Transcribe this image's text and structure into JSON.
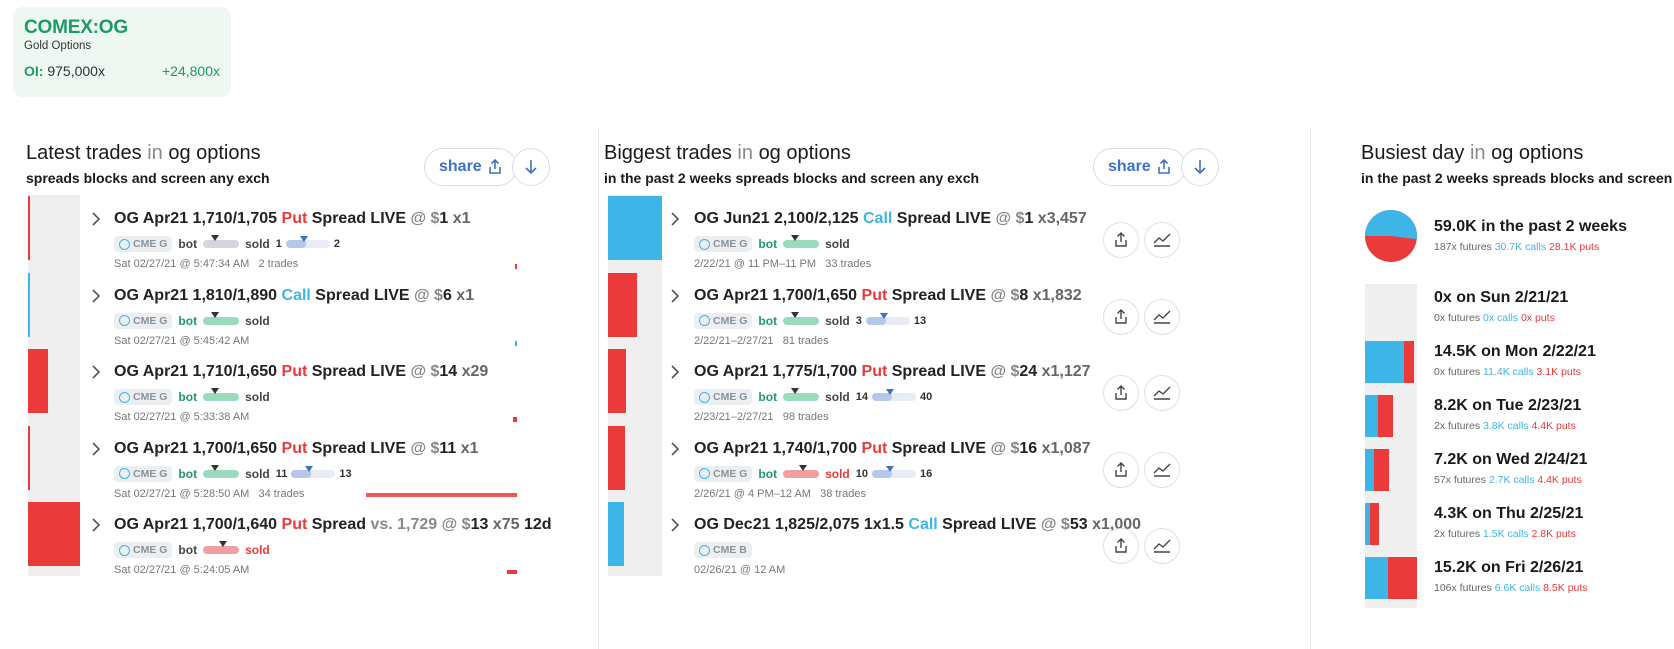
{
  "ticker": {
    "symbol": "COMEX:OG",
    "name": "Gold Options",
    "oi_label": "OI:",
    "oi_value": "975,000x",
    "oi_change": "+24,800x"
  },
  "colors": {
    "put": "#ea3a3a",
    "call": "#3db5e6",
    "accent": "#1d9a6c",
    "link": "#3f72c6"
  },
  "latest": {
    "title_main": "Latest trades",
    "title_in": "in",
    "title_subject": "og options",
    "subtitle": "spreads blocks and screen any exch",
    "share_label": "share",
    "trades": [
      {
        "title_pre": "OG Apr21 1,710/1,705 ",
        "type": "Put",
        "title_mid": " Spread LIVE ",
        "at": "@ $",
        "price": "1",
        "qty": " x1",
        "exch": "CME G",
        "bot": "bot",
        "sold": "sold",
        "range_lo": "1",
        "range_hi": "2",
        "time": "Sat 02/27/21 @ 5:47:34 AM",
        "count": "2 trades",
        "bar": 0.02,
        "side": "put"
      },
      {
        "title_pre": "OG Apr21 1,810/1,890 ",
        "type": "Call",
        "title_mid": " Spread LIVE ",
        "at": "@ $",
        "price": "6",
        "qty": " x1",
        "exch": "CME G",
        "bot": "bot",
        "sold": "sold",
        "range_lo": "",
        "range_hi": "",
        "time": "Sat 02/27/21 @ 5:45:42 AM",
        "count": "",
        "bar": 0.02,
        "side": "call"
      },
      {
        "title_pre": "OG Apr21 1,710/1,650 ",
        "type": "Put",
        "title_mid": " Spread LIVE ",
        "at": "@ $",
        "price": "14",
        "qty": " x29",
        "exch": "CME G",
        "bot": "bot",
        "sold": "sold",
        "range_lo": "",
        "range_hi": "",
        "time": "Sat 02/27/21 @ 5:33:38 AM",
        "count": "",
        "bar": 0.38,
        "side": "put"
      },
      {
        "title_pre": "OG Apr21 1,700/1,650 ",
        "type": "Put",
        "title_mid": " Spread LIVE ",
        "at": "@ $",
        "price": "11",
        "qty": " x1",
        "exch": "CME G",
        "bot": "bot",
        "sold": "sold",
        "range_lo": "11",
        "range_hi": "13",
        "time": "Sat 02/27/21 @ 5:28:50 AM",
        "count": "34 trades",
        "bar": 0.02,
        "side": "put"
      },
      {
        "title_pre": "OG Apr21 1,700/1,640 ",
        "type": "Put",
        "title_mid": " Spread ",
        "vs": "vs. 1,729 ",
        "at": "@ $",
        "price": "13",
        "qty": " x75",
        "extra": " 12d",
        "exch": "CME G",
        "bot": "bot",
        "sold": "sold",
        "range_lo": "",
        "range_hi": "",
        "time": "Sat 02/27/21 @ 5:24:05 AM",
        "count": "",
        "bar": 1.0,
        "side": "put"
      }
    ]
  },
  "biggest": {
    "title_main": "Biggest trades",
    "title_in": "in",
    "title_subject": "og options",
    "subtitle": "in the past 2 weeks  spreads blocks and screen any exch",
    "share_label": "share",
    "trades": [
      {
        "title_pre": "OG Jun21 2,100/2,125 ",
        "type": "Call",
        "title_mid": " Spread LIVE ",
        "at": "@ $",
        "price": "1",
        "qty": " x3,457",
        "exch": "CME G",
        "bot": "bot",
        "sold": "sold",
        "range_lo": "",
        "range_hi": "",
        "time": "2/22/21 @ 11 PM–11 PM",
        "count": "33 trades",
        "bar": 1.0,
        "side": "call"
      },
      {
        "title_pre": "OG Apr21 1,700/1,650 ",
        "type": "Put",
        "title_mid": " Spread LIVE ",
        "at": "@ $",
        "price": "8",
        "qty": " x1,832",
        "exch": "CME G",
        "bot": "bot",
        "sold": "sold",
        "range_lo": "3",
        "range_hi": "13",
        "time": "2/22/21–2/27/21",
        "count": "81 trades",
        "bar": 0.53,
        "side": "put"
      },
      {
        "title_pre": "OG Apr21 1,775/1,700 ",
        "type": "Put",
        "title_mid": " Spread LIVE ",
        "at": "@ $",
        "price": "24",
        "qty": " x1,127",
        "exch": "CME G",
        "bot": "bot",
        "sold": "sold",
        "range_lo": "14",
        "range_hi": "40",
        "time": "2/23/21–2/27/21",
        "count": "98 trades",
        "bar": 0.33,
        "side": "put"
      },
      {
        "title_pre": "OG Apr21 1,740/1,700 ",
        "type": "Put",
        "title_mid": " Spread LIVE ",
        "at": "@ $",
        "price": "16",
        "qty": " x1,087",
        "exch": "CME G",
        "bot": "bot",
        "sold": "sold",
        "range_lo": "10",
        "range_hi": "16",
        "time": "2/26/21 @ 4 PM–12 AM",
        "count": "38 trades",
        "bar": 0.31,
        "side": "put"
      },
      {
        "title_pre": "OG Dec21 1,825/2,075 1x1.5 ",
        "type": "Call",
        "title_mid": " Spread LIVE ",
        "at": "@ $",
        "price": "53",
        "qty": " x1,000",
        "exch": "CME B",
        "bot": "",
        "sold": "",
        "range_lo": "",
        "range_hi": "",
        "time": "02/26/21 @ 12 AM",
        "count": "",
        "bar": 0.29,
        "side": "call"
      }
    ]
  },
  "busiest": {
    "title_main": "Busiest day",
    "title_in": "in",
    "title_subject": "og options",
    "subtitle": "in the past 2 weeks  spreads blocks and screen",
    "summary": {
      "title": "59.0K in the past 2 weeks",
      "futures": "187x futures",
      "calls": "30.7K calls",
      "puts": "28.1K puts",
      "call_fraction": 0.52
    },
    "days": [
      {
        "title": "0x on Sun 2/21/21",
        "futures": "0x futures",
        "calls": "0x calls",
        "puts": "0x puts",
        "call_frac": 0.0,
        "put_frac": 0.0
      },
      {
        "title": "14.5K on Mon 2/22/21",
        "futures": "0x futures",
        "calls": "11.4K calls",
        "puts": "3.1K puts",
        "call_frac": 0.75,
        "put_frac": 0.2
      },
      {
        "title": "8.2K on Tue 2/23/21",
        "futures": "2x futures",
        "calls": "3.8K calls",
        "puts": "4.4K puts",
        "call_frac": 0.25,
        "put_frac": 0.29
      },
      {
        "title": "7.2K on Wed 2/24/21",
        "futures": "57x futures",
        "calls": "2.7K calls",
        "puts": "4.4K puts",
        "call_frac": 0.18,
        "put_frac": 0.29
      },
      {
        "title": "4.3K on Thu 2/25/21",
        "futures": "2x futures",
        "calls": "1.5K calls",
        "puts": "2.8K puts",
        "call_frac": 0.1,
        "put_frac": 0.18
      },
      {
        "title": "15.2K on Fri 2/26/21",
        "futures": "106x futures",
        "calls": "6.6K calls",
        "puts": "8.5K puts",
        "call_frac": 0.44,
        "put_frac": 0.56
      }
    ]
  }
}
